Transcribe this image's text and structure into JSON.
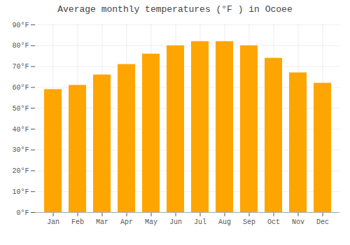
{
  "chart_data": {
    "type": "bar",
    "title": "Average monthly temperatures (°F ) in Ocoee",
    "categories": [
      "Jan",
      "Feb",
      "Mar",
      "Apr",
      "May",
      "Jun",
      "Jul",
      "Aug",
      "Sep",
      "Oct",
      "Nov",
      "Dec"
    ],
    "values": [
      59,
      61,
      66,
      71,
      76,
      80,
      82,
      82,
      80,
      74,
      67,
      62
    ],
    "color": "#FFA500",
    "ylim": [
      0,
      90
    ],
    "yticks": [
      {
        "value": 0,
        "label": "0°F"
      },
      {
        "value": 10,
        "label": "10°F"
      },
      {
        "value": 20,
        "label": "20°F"
      },
      {
        "value": 30,
        "label": "30°F"
      },
      {
        "value": 40,
        "label": "40°F"
      },
      {
        "value": 50,
        "label": "50°F"
      },
      {
        "value": 60,
        "label": "60°F"
      },
      {
        "value": 70,
        "label": "70°F"
      },
      {
        "value": 80,
        "label": "80°F"
      },
      {
        "value": 90,
        "label": "90°F"
      }
    ],
    "grid": true
  }
}
